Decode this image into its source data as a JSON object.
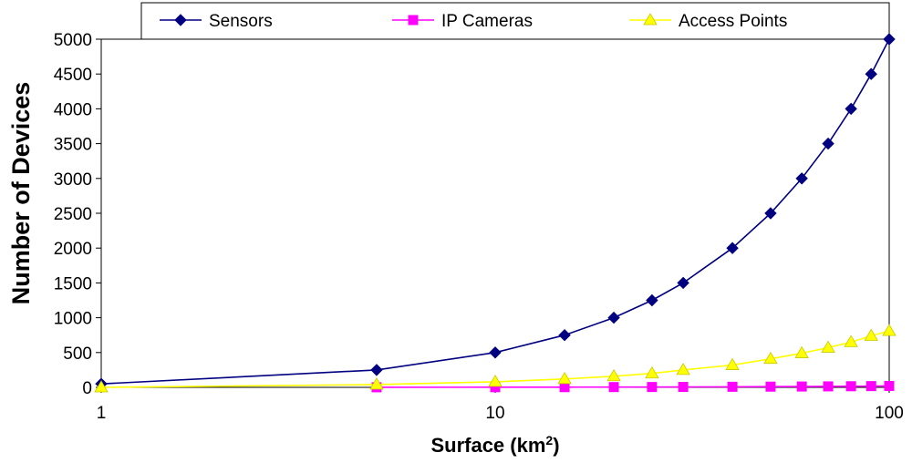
{
  "chart_data": {
    "type": "line",
    "x_scale": "log",
    "xlim": [
      1,
      100
    ],
    "ylim": [
      0,
      5000
    ],
    "xticks": [
      "1",
      "10",
      "100"
    ],
    "yticks": [
      "0",
      "500",
      "1000",
      "1500",
      "2000",
      "2500",
      "3000",
      "3500",
      "4000",
      "4500",
      "5000"
    ],
    "xlabel": "Surface (km",
    "xlabel_sup": "2",
    "xlabel_close": ")",
    "ylabel": "Number of Devices",
    "grid": false,
    "legend_position": "top",
    "series": [
      {
        "name": "Sensors",
        "color": "#000080",
        "marker": "diamond",
        "points": [
          [
            1,
            50
          ],
          [
            5,
            250
          ],
          [
            10,
            500
          ],
          [
            15,
            750
          ],
          [
            20,
            1000
          ],
          [
            25,
            1250
          ],
          [
            30,
            1500
          ],
          [
            40,
            2000
          ],
          [
            50,
            2500
          ],
          [
            60,
            3000
          ],
          [
            70,
            3500
          ],
          [
            80,
            4000
          ],
          [
            90,
            4500
          ],
          [
            100,
            5000
          ]
        ]
      },
      {
        "name": "IP Cameras",
        "color": "#ff00ff",
        "marker": "square",
        "points": [
          [
            5,
            1
          ],
          [
            10,
            2
          ],
          [
            15,
            3
          ],
          [
            20,
            4
          ],
          [
            25,
            5
          ],
          [
            30,
            6
          ],
          [
            40,
            8
          ],
          [
            50,
            10
          ],
          [
            60,
            12
          ],
          [
            70,
            14
          ],
          [
            80,
            16
          ],
          [
            90,
            18
          ],
          [
            100,
            20
          ]
        ]
      },
      {
        "name": "Access Points",
        "color": "#ffff00",
        "marker_stroke": "#c8c800",
        "marker": "triangle",
        "points": [
          [
            1,
            0
          ],
          [
            5,
            40
          ],
          [
            10,
            80
          ],
          [
            15,
            120
          ],
          [
            20,
            160
          ],
          [
            25,
            200
          ],
          [
            30,
            250
          ],
          [
            40,
            320
          ],
          [
            50,
            410
          ],
          [
            60,
            490
          ],
          [
            70,
            570
          ],
          [
            80,
            650
          ],
          [
            90,
            740
          ],
          [
            100,
            810
          ]
        ]
      }
    ]
  }
}
